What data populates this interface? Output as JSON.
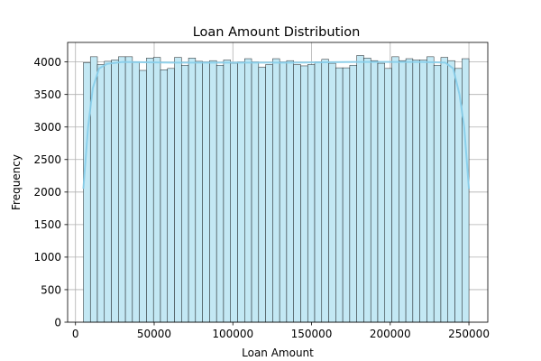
{
  "chart_data": {
    "type": "bar",
    "title": "Loan Amount Distribution",
    "xlabel": "Loan Amount",
    "ylabel": "Frequency",
    "xlim": [
      -5000,
      262000
    ],
    "ylim": [
      0,
      4300
    ],
    "xticks": [
      0,
      50000,
      100000,
      150000,
      200000,
      250000
    ],
    "xtick_labels": [
      "0",
      "50000",
      "100000",
      "150000",
      "200000",
      "250000"
    ],
    "yticks": [
      0,
      500,
      1000,
      1500,
      2000,
      2500,
      3000,
      3500,
      4000
    ],
    "ytick_labels": [
      "0",
      "500",
      "1000",
      "1500",
      "2000",
      "2500",
      "3000",
      "3500",
      "4000"
    ],
    "grid": true,
    "bin_start": 5000,
    "bin_end": 250000,
    "values": [
      3990,
      4080,
      3960,
      4010,
      4030,
      4080,
      4080,
      4000,
      3870,
      4060,
      4070,
      3880,
      3900,
      4070,
      3950,
      4060,
      4010,
      4000,
      4020,
      3950,
      4030,
      3980,
      4000,
      4050,
      4000,
      3920,
      3960,
      4050,
      4000,
      4020,
      3960,
      3940,
      3960,
      4000,
      4040,
      3980,
      3910,
      3910,
      3950,
      4100,
      4060,
      4020,
      3980,
      3900,
      4080,
      4020,
      4050,
      4030,
      4030,
      4080,
      3950,
      4070,
      4020,
      3900,
      4050
    ],
    "kde": [
      [
        5000,
        2050
      ],
      [
        8000,
        3000
      ],
      [
        11000,
        3600
      ],
      [
        15000,
        3900
      ],
      [
        20000,
        3970
      ],
      [
        30000,
        4000
      ],
      [
        60000,
        3990
      ],
      [
        100000,
        3990
      ],
      [
        140000,
        3990
      ],
      [
        180000,
        4000
      ],
      [
        220000,
        4000
      ],
      [
        235000,
        3990
      ],
      [
        240000,
        3900
      ],
      [
        244000,
        3500
      ],
      [
        247000,
        3000
      ],
      [
        250000,
        2050
      ]
    ],
    "colors": {
      "bar_fill": "#c3e8f4",
      "bar_edge": "#000000",
      "kde_line": "#87ceeb",
      "grid": "#b0b0b0"
    }
  }
}
